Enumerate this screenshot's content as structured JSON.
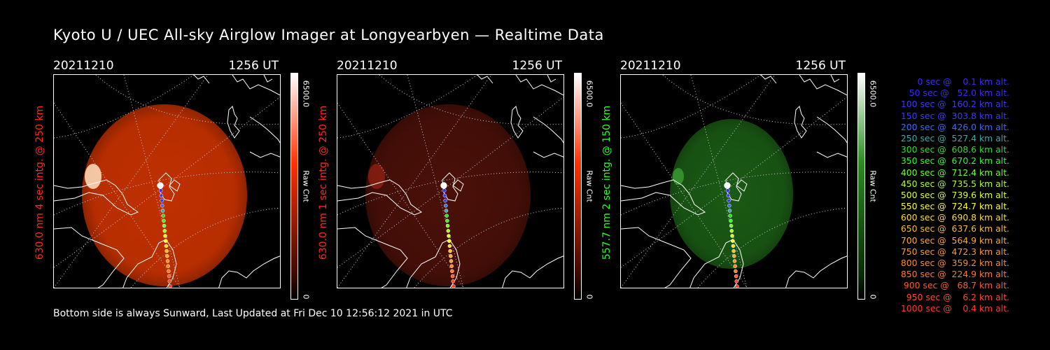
{
  "title": "Kyoto U / UEC All-sky Airglow Imager at Longyearbyen — Realtime Data",
  "footer": "Bottom side is always Sunward, Last Updated at Fri Dec 10 12:56:12 2021 in UTC",
  "panels": [
    {
      "date": "20211210",
      "time": "1256 UT",
      "ylabel": "630.0 nm 4 sec intg. @ 250 km",
      "ylabel_color": "#ff2a1a",
      "cbar_max": "6500.0",
      "cbar_label": "Raw Cnt",
      "cbar_min": "0",
      "glow": "#c03000",
      "glow_intensity": 0.95,
      "cbar_color": "#ff3000"
    },
    {
      "date": "20211210",
      "time": "1256 UT",
      "ylabel": "630.0 nm 1 sec intg. @ 250 km",
      "ylabel_color": "#ff2a1a",
      "cbar_max": "6500.0",
      "cbar_label": "Raw Cnt",
      "cbar_min": "0",
      "glow": "#4a1008",
      "glow_intensity": 0.9,
      "cbar_color": "#ff3000"
    },
    {
      "date": "20211210",
      "time": "1256 UT",
      "ylabel": "557.7 nm 2 sec intg. @ 150 km",
      "ylabel_color": "#2aff2a",
      "cbar_max": "6500.0",
      "cbar_label": "Raw Cnt",
      "cbar_min": "0",
      "glow": "#1a5a14",
      "glow_intensity": 0.9,
      "cbar_color": "#2a8a20"
    }
  ],
  "legend": [
    {
      "text": "0 sec @    0.1 km alt.",
      "color": "#3a2aff"
    },
    {
      "text": "50 sec @   52.0 km alt.",
      "color": "#3a2aff"
    },
    {
      "text": "100 sec @  160.2 km alt.",
      "color": "#3a3aff"
    },
    {
      "text": "150 sec @  303.8 km alt.",
      "color": "#3a3aff"
    },
    {
      "text": "200 sec @  426.0 km alt.",
      "color": "#3a6aff"
    },
    {
      "text": "250 sec @  527.4 km alt.",
      "color": "#3aaaaa"
    },
    {
      "text": "300 sec @  608.6 km alt.",
      "color": "#2adf2a"
    },
    {
      "text": "350 sec @  670.2 km alt.",
      "color": "#2aff2a"
    },
    {
      "text": "400 sec @  712.4 km alt.",
      "color": "#6aff2a"
    },
    {
      "text": "450 sec @  735.5 km alt.",
      "color": "#aaff2a"
    },
    {
      "text": "500 sec @  739.6 km alt.",
      "color": "#ddff2a"
    },
    {
      "text": "550 sec @  724.7 km alt.",
      "color": "#ffff2a"
    },
    {
      "text": "600 sec @  690.8 km alt.",
      "color": "#ffdd2a"
    },
    {
      "text": "650 sec @  637.6 km alt.",
      "color": "#ffbb2a"
    },
    {
      "text": "700 sec @  564.9 km alt.",
      "color": "#ffaa2a"
    },
    {
      "text": "750 sec @  472.3 km alt.",
      "color": "#ff9a2a"
    },
    {
      "text": "800 sec @  359.2 km alt.",
      "color": "#ff8a2a"
    },
    {
      "text": "850 sec @  224.9 km alt.",
      "color": "#ff7a2a"
    },
    {
      "text": "900 sec @   68.7 km alt.",
      "color": "#ff5a2a"
    },
    {
      "text": "950 sec @    6.2 km alt.",
      "color": "#ff4a2a"
    },
    {
      "text": "1000 sec @    0.4 km alt.",
      "color": "#ff3a2a"
    }
  ]
}
